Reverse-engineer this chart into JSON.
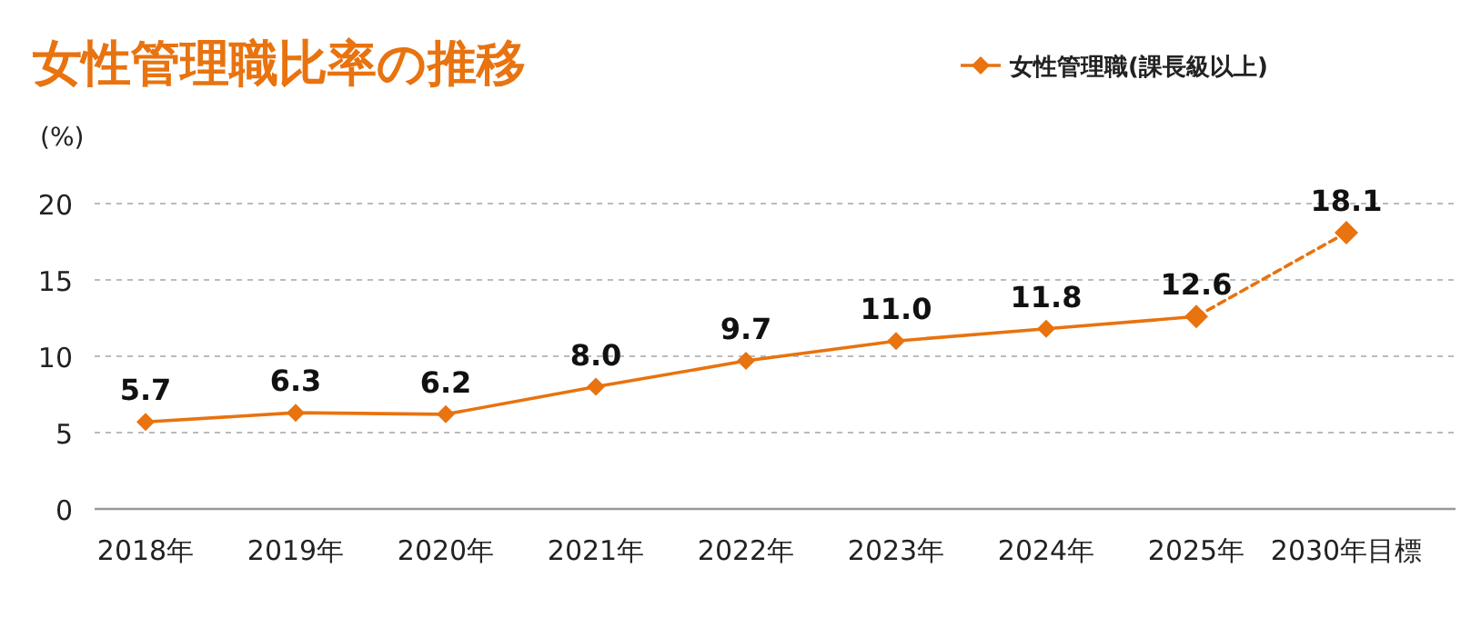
{
  "chart_data": {
    "type": "line",
    "title": "女性管理職比率の推移",
    "ylabel": "(%)",
    "categories": [
      "2018年",
      "2019年",
      "2020年",
      "2021年",
      "2022年",
      "2023年",
      "2024年",
      "2025年",
      "2030年目標"
    ],
    "series": [
      {
        "name": "女性管理職(課長級以上)",
        "color": "#e8730f",
        "line_style": "solid",
        "values": [
          5.7,
          6.3,
          6.2,
          8.0,
          9.7,
          11.0,
          11.8,
          12.6,
          null
        ],
        "value_labels": [
          "5.7",
          "6.3",
          "6.2",
          "8.0",
          "9.7",
          "11.0",
          "11.8",
          "12.6",
          null
        ]
      },
      {
        "color": "#e8730f",
        "line_style": "dashed",
        "values": [
          null,
          null,
          null,
          null,
          null,
          null,
          null,
          12.6,
          18.1
        ],
        "value_labels": [
          null,
          null,
          null,
          null,
          null,
          null,
          null,
          null,
          "18.1"
        ]
      }
    ],
    "ylim": [
      0,
      20
    ],
    "yticks": [
      0,
      5,
      10,
      15,
      20
    ],
    "grid": "y",
    "legend": "top right",
    "marker": "diamond"
  }
}
